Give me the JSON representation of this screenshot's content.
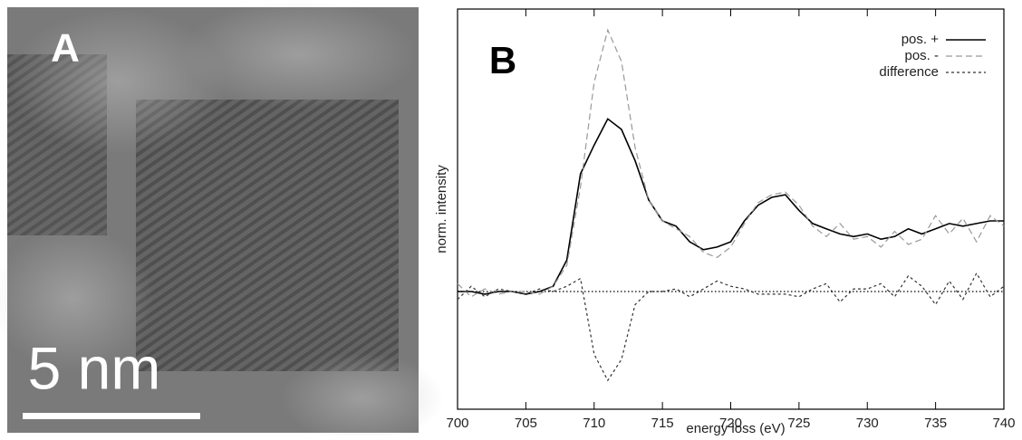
{
  "panel_a": {
    "label": "A",
    "scale_bar": "5 nm"
  },
  "chart_data": {
    "type": "line",
    "label": "B",
    "xlabel": "energy loss (eV)",
    "ylabel": "norm. intensity",
    "x": [
      700,
      701,
      702,
      703,
      704,
      705,
      706,
      707,
      708,
      709,
      710,
      711,
      712,
      713,
      714,
      715,
      716,
      717,
      718,
      719,
      720,
      721,
      722,
      723,
      724,
      725,
      726,
      727,
      728,
      729,
      730,
      731,
      732,
      733,
      734,
      735,
      736,
      737,
      738,
      739,
      740
    ],
    "series": [
      {
        "name": "pos. +",
        "color": "#000000",
        "dash": "solid",
        "values": [
          0.0,
          0.0,
          -0.01,
          0.0,
          0.0,
          -0.01,
          0.0,
          0.02,
          0.12,
          0.45,
          0.56,
          0.66,
          0.62,
          0.5,
          0.35,
          0.27,
          0.25,
          0.19,
          0.16,
          0.17,
          0.19,
          0.27,
          0.33,
          0.36,
          0.37,
          0.31,
          0.26,
          0.24,
          0.22,
          0.21,
          0.22,
          0.2,
          0.21,
          0.24,
          0.22,
          0.24,
          0.26,
          0.25,
          0.26,
          0.27,
          0.27
        ]
      },
      {
        "name": "pos. -",
        "color": "#999999",
        "dash": "dashed",
        "values": [
          0.03,
          -0.02,
          0.01,
          -0.01,
          0.0,
          0.0,
          -0.01,
          0.02,
          0.1,
          0.4,
          0.8,
          1.0,
          0.88,
          0.55,
          0.35,
          0.27,
          0.24,
          0.21,
          0.15,
          0.13,
          0.17,
          0.26,
          0.34,
          0.37,
          0.38,
          0.33,
          0.25,
          0.21,
          0.26,
          0.2,
          0.21,
          0.17,
          0.23,
          0.18,
          0.2,
          0.29,
          0.22,
          0.28,
          0.19,
          0.29,
          0.25
        ]
      },
      {
        "name": "difference",
        "color": "#333333",
        "dash": "dotted",
        "values": [
          -0.03,
          0.02,
          -0.02,
          0.01,
          0.0,
          -0.01,
          0.01,
          0.0,
          0.02,
          0.05,
          -0.24,
          -0.34,
          -0.26,
          -0.05,
          0.0,
          0.0,
          0.01,
          -0.02,
          0.01,
          0.04,
          0.02,
          0.01,
          -0.01,
          -0.01,
          -0.01,
          -0.02,
          0.01,
          0.03,
          -0.04,
          0.01,
          0.01,
          0.03,
          -0.02,
          0.06,
          0.02,
          -0.05,
          0.04,
          -0.03,
          0.07,
          -0.02,
          0.02
        ]
      }
    ],
    "zero_line": 0,
    "xlim": [
      700,
      740
    ],
    "xticks": [
      700,
      705,
      710,
      715,
      720,
      725,
      730,
      735,
      740
    ],
    "ylim": [
      -0.45,
      1.08
    ],
    "legend": "upper right"
  }
}
